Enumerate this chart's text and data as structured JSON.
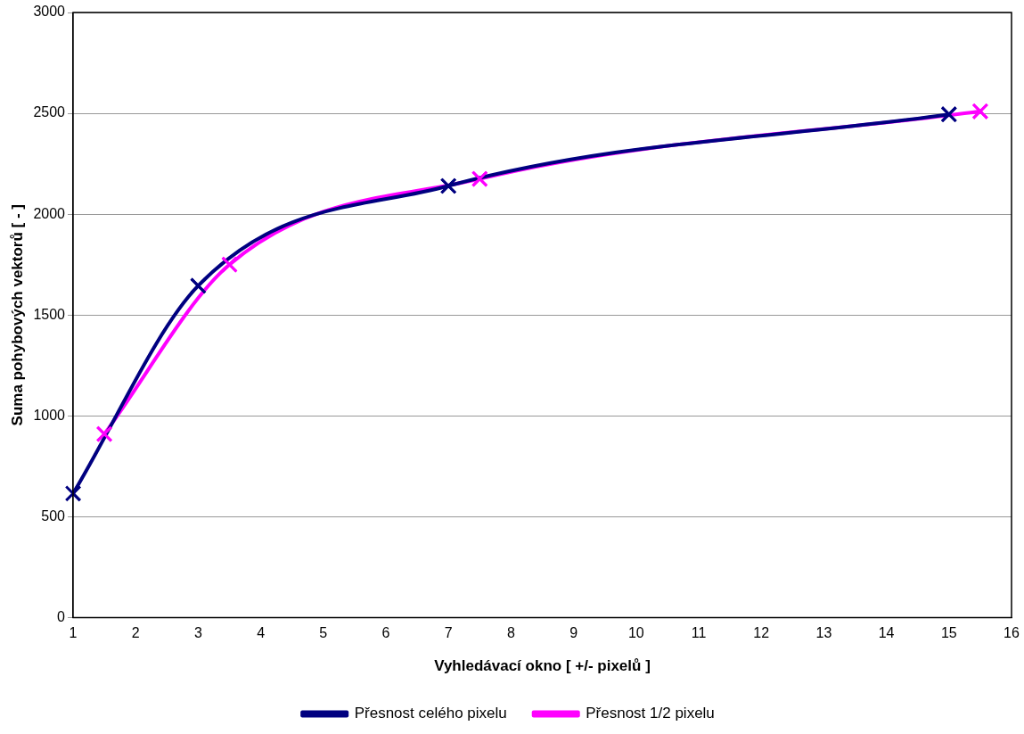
{
  "chart_data": {
    "type": "line",
    "xlabel": "Vyhledávací okno [ +/- pixelů ]",
    "ylabel": "Suma pohybových vektorů [ - ]",
    "series": [
      {
        "name": "Přesnost celého pixelu",
        "color": "#000080",
        "x": [
          1,
          3,
          7,
          15
        ],
        "values": [
          615,
          1645,
          2140,
          2495
        ]
      },
      {
        "name": "Přesnost 1/2 pixelu",
        "color": "#ff00ff",
        "x": [
          1.5,
          3.5,
          7.5,
          15.5
        ],
        "values": [
          910,
          1750,
          2175,
          2510
        ]
      }
    ],
    "xlim": [
      1,
      16
    ],
    "xticks": [
      1,
      2,
      3,
      4,
      5,
      6,
      7,
      8,
      9,
      10,
      11,
      12,
      13,
      14,
      15,
      16
    ],
    "ylim": [
      0,
      3000
    ],
    "yticks": [
      0,
      500,
      1000,
      1500,
      2000,
      2500,
      3000
    ],
    "grid": "y",
    "legend": "bottom",
    "marker": "cross",
    "line_style": "solid"
  }
}
